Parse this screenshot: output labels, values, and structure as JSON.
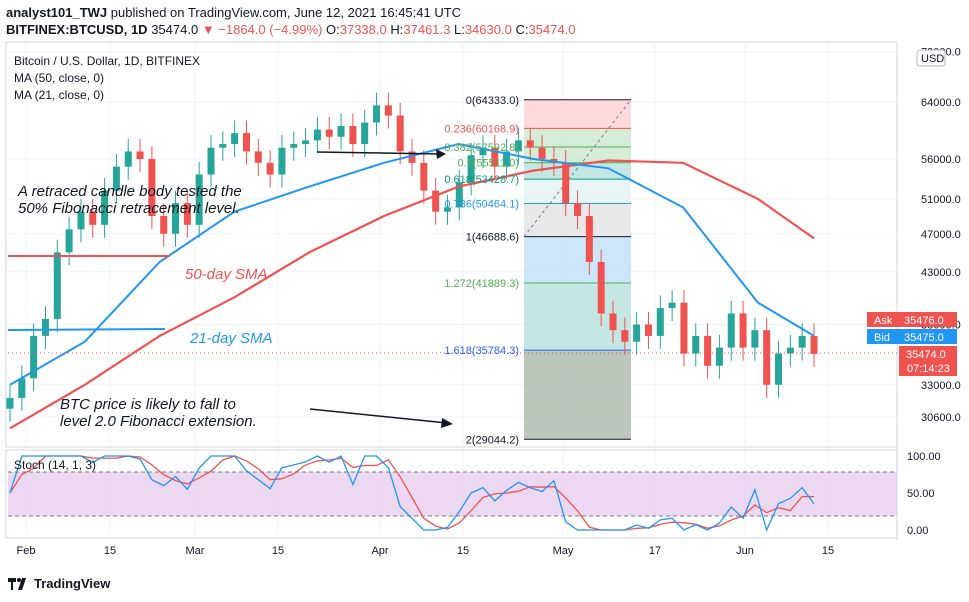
{
  "header": {
    "line1_user": "analyst101_TWJ",
    "line1_rest": " published on TradingView.com, June 12, 2021 16:45:41 UTC",
    "symbol": "BITFINEX:BTCUSD, 1D",
    "last": "35474.0",
    "change": "▼ −1864.0 (−4.99%)",
    "o_label": "O:",
    "o_val": "37338.0",
    "h_label": "H:",
    "h_val": "37461.3",
    "l_label": "L:",
    "l_val": "34630.0",
    "c_label": "C:",
    "c_val": "35474.0"
  },
  "legend": {
    "title": "Bitcoin / U.S. Dollar, 1D, BITFINEX",
    "ma50": "MA (50, close, 0)",
    "ma21": "MA (21, close, 0)"
  },
  "price_axis": {
    "currency": "USD",
    "ticks": [
      "72000.0",
      "64000.0",
      "56000.0",
      "51000.0",
      "47000.0",
      "43000.0",
      "38000.0",
      "33000.0",
      "30600.0"
    ],
    "ask_label": "Ask",
    "ask_value": "35476.0",
    "bid_label": "Bid",
    "bid_value": "35475.0",
    "last_value": "35474.0",
    "countdown": "07:14:23"
  },
  "stoch_axis": {
    "label": "Stoch (14, 1, 3)",
    "ticks": [
      "100.00",
      "50.00",
      "0.00"
    ]
  },
  "time_axis": [
    "Feb",
    "15",
    "Mar",
    "15",
    "Apr",
    "15",
    "May",
    "17",
    "Jun",
    "15"
  ],
  "fib_levels": [
    {
      "label": "0(64333.0)",
      "color": "#131722"
    },
    {
      "label": "0.236(60168.9)",
      "color": "#ef5350"
    },
    {
      "label": "0.382(57592.8)",
      "color": "#4caf50"
    },
    {
      "label": "0.5(55511.0)",
      "color": "#4caf50"
    },
    {
      "label": "0.618(53428.7)",
      "color": "#089981"
    },
    {
      "label": "0.786(50464.1)",
      "color": "#2196f3"
    },
    {
      "label": "1(46688.6)",
      "color": "#131722"
    },
    {
      "label": "1.272(41889.3)",
      "color": "#4caf50"
    },
    {
      "label": "1.618(35784.3)",
      "color": "#2962ff"
    },
    {
      "label": "2(29044.2)",
      "color": "#131722"
    }
  ],
  "annotations": {
    "retrace_line1": "A retraced candle body tested the",
    "retrace_line2": "50% Fibonacci retracement level.",
    "btc_line1": "BTC price is likely to fall to",
    "btc_line2": "level 2.0  Fibonacci extension.",
    "sma50": "50-day SMA",
    "sma21": "21-day SMA"
  },
  "colors": {
    "up": "#26a69a",
    "down": "#ef5350",
    "ma21": "#2196f3",
    "ma50": "#ef5350",
    "stoch_k": "#2196f3",
    "stoch_d": "#ef5350",
    "stoch_bg": "#e1bee7"
  },
  "footer": {
    "brand": "TradingView"
  },
  "chart_data": {
    "type": "candlestick",
    "title": "Bitcoin / U.S. Dollar, 1D, BITFINEX",
    "x": [
      "Feb",
      "15",
      "Mar",
      "15",
      "Apr",
      "15",
      "May",
      "17",
      "Jun",
      "15"
    ],
    "ylim": [
      28000,
      72000
    ],
    "last_candle": {
      "open": 37338.0,
      "high": 37461.3,
      "low": 34630.0,
      "close": 35474.0
    },
    "series": [
      {
        "name": "MA (50, close, 0)",
        "x": [
          0,
          20,
          40,
          60,
          80,
          100,
          120,
          140,
          160,
          180,
          200,
          215
        ],
        "values": [
          29800,
          33000,
          37000,
          40500,
          45000,
          49000,
          52500,
          54500,
          55800,
          55500,
          51000,
          46500
        ]
      },
      {
        "name": "MA (21, close, 0)",
        "x": [
          0,
          20,
          40,
          60,
          80,
          100,
          120,
          140,
          160,
          180,
          200,
          215
        ],
        "values": [
          33000,
          36500,
          44000,
          49500,
          52500,
          55500,
          58000,
          56000,
          54800,
          50000,
          40000,
          37000
        ]
      }
    ],
    "candles_approx_closes": [
      32000,
      33500,
      37000,
      38500,
      45000,
      47500,
      49500,
      48000,
      52000,
      55000,
      57000,
      56000,
      49000,
      47000,
      50500,
      48000,
      54000,
      57500,
      58000,
      59500,
      57000,
      55500,
      54000,
      57500,
      58000,
      58500,
      60000,
      59000,
      60500,
      58000,
      61000,
      63500,
      62000,
      57000,
      55500,
      52000,
      49500,
      50000,
      53000,
      56500,
      57500,
      55000,
      57000,
      58500,
      57500,
      56000,
      55500,
      50500,
      49000,
      44000,
      39000,
      37500,
      36500,
      38000,
      37000,
      39500,
      40000,
      35500,
      37000,
      34500,
      36000,
      39000,
      36000,
      37500,
      33000,
      35500,
      36000,
      37000,
      35474
    ],
    "stochastic": {
      "name": "Stoch (14, 1, 3)",
      "range": [
        0,
        100
      ],
      "upper": 80,
      "lower": 20
    },
    "fibonacci": [
      {
        "ratio": 0,
        "price": 64333.0
      },
      {
        "ratio": 0.236,
        "price": 60168.9
      },
      {
        "ratio": 0.382,
        "price": 57592.8
      },
      {
        "ratio": 0.5,
        "price": 55511.0
      },
      {
        "ratio": 0.618,
        "price": 53428.7
      },
      {
        "ratio": 0.786,
        "price": 50464.1
      },
      {
        "ratio": 1,
        "price": 46688.6
      },
      {
        "ratio": 1.272,
        "price": 41889.3
      },
      {
        "ratio": 1.618,
        "price": 35784.3
      },
      {
        "ratio": 2,
        "price": 29044.2
      }
    ]
  }
}
